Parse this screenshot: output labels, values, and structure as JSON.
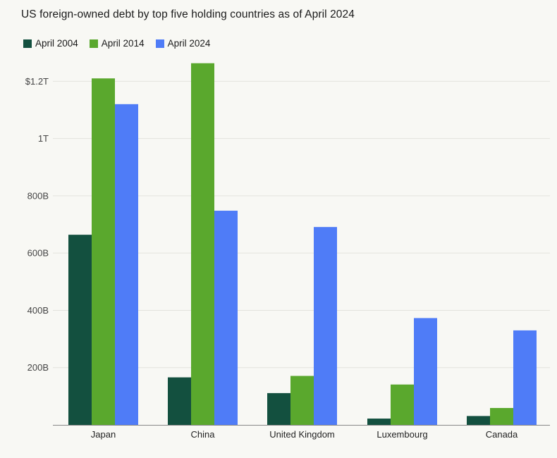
{
  "chart_data": {
    "type": "bar",
    "title": "US foreign-owned debt by top five holding countries as of April 2024",
    "xlabel": "",
    "ylabel": "",
    "categories": [
      "Japan",
      "China",
      "United Kingdom",
      "Luxembourg",
      "Canada"
    ],
    "series": [
      {
        "name": "April 2004",
        "color": "#13503f",
        "values": [
          664,
          166,
          111,
          22,
          31
        ]
      },
      {
        "name": "April 2014",
        "color": "#5aa82d",
        "values": [
          1210,
          1263,
          171,
          141,
          59
        ]
      },
      {
        "name": "April 2024",
        "color": "#4f7cf7",
        "values": [
          1120,
          748,
          691,
          373,
          330
        ]
      }
    ],
    "ylim": [
      0,
      1250
    ],
    "yticks": [
      {
        "value": 200,
        "label": "200B"
      },
      {
        "value": 400,
        "label": "400B"
      },
      {
        "value": 600,
        "label": "600B"
      },
      {
        "value": 800,
        "label": "800B"
      },
      {
        "value": 1000,
        "label": "1T"
      },
      {
        "value": 1200,
        "label": "$1.2T"
      }
    ],
    "grid": true,
    "legend_position": "top-left"
  }
}
